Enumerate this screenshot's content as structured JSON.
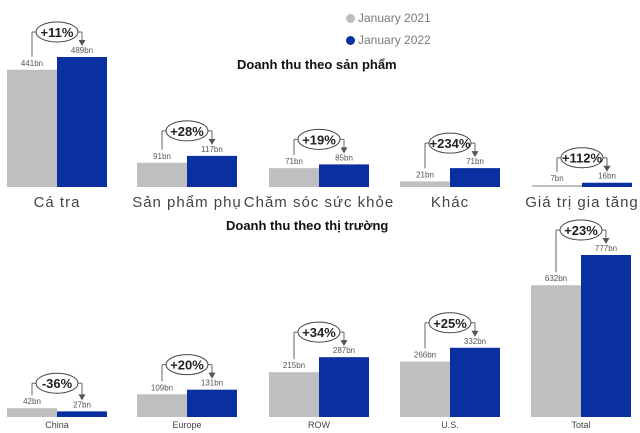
{
  "legend": [
    {
      "label": "January 2021",
      "color": "#bfbfbf"
    },
    {
      "label": "January 2022",
      "color": "#0a2fa0"
    }
  ],
  "chart_data": [
    {
      "type": "bar",
      "title": "Doanh thu theo sản phẩm",
      "categories": [
        "Cá tra",
        "Sản phẩm phụ",
        "Chăm sóc sức khỏe",
        "Khác",
        "Giá trị gia tăng"
      ],
      "series": [
        {
          "name": "January 2021",
          "values": [
            441,
            91,
            71,
            21,
            7
          ],
          "labels": [
            "441bn",
            "91bn",
            "71bn",
            "21bn",
            "7bn"
          ],
          "color": "#bfbfbf"
        },
        {
          "name": "January 2022",
          "values": [
            489,
            117,
            85,
            71,
            16
          ],
          "labels": [
            "489bn",
            "117bn",
            "85bn",
            "71bn",
            "16bn"
          ],
          "color": "#0a2fa0"
        }
      ],
      "growth": [
        "+11%",
        "+28%",
        "+19%",
        "+234%",
        "+112%"
      ]
    },
    {
      "type": "bar",
      "title": "Doanh thu theo thị trường",
      "categories": [
        "China",
        "Europe",
        "ROW",
        "U.S.",
        "Total"
      ],
      "series": [
        {
          "name": "January 2021",
          "values": [
            42,
            109,
            215,
            266,
            632
          ],
          "labels": [
            "42bn",
            "109bn",
            "215bn",
            "266bn",
            "632bn"
          ],
          "color": "#bfbfbf"
        },
        {
          "name": "January 2022",
          "values": [
            27,
            131,
            287,
            332,
            777
          ],
          "labels": [
            "27bn",
            "131bn",
            "287bn",
            "332bn",
            "777bn"
          ],
          "color": "#0a2fa0"
        }
      ],
      "growth": [
        "-36%",
        "+20%",
        "+34%",
        "+25%",
        "+23%"
      ]
    }
  ]
}
